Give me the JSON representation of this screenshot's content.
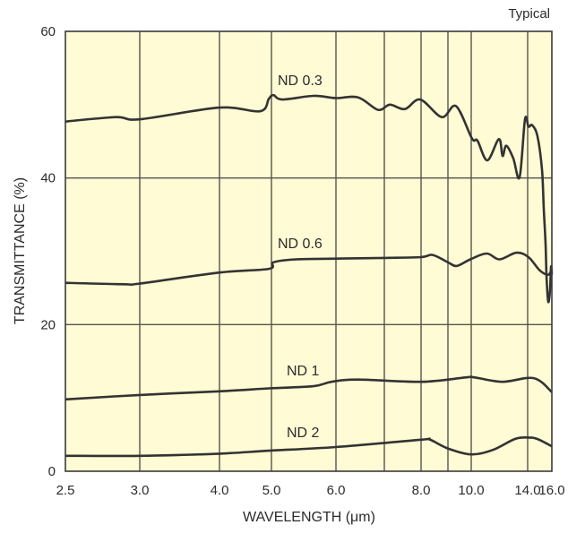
{
  "chart_data": {
    "type": "line",
    "title": "",
    "annotation": "Typical",
    "xlabel": "WAVELENGTH (μm)",
    "ylabel": "TRANSMITTANCE (%)",
    "xlim": [
      2.5,
      16.0
    ],
    "ylim": [
      0,
      60
    ],
    "x_scale": "custom (non-uniform tick spacing)",
    "x_ticks": [
      2.5,
      3.0,
      4.0,
      5.0,
      6.0,
      7.0,
      8.0,
      9.0,
      10.0,
      14.0,
      16.0
    ],
    "x_tick_labels": [
      "2.5",
      "3.0",
      "4.0",
      "5.0",
      "6.0",
      "",
      "8.0",
      "",
      "10.0",
      "14.0",
      "16.0"
    ],
    "y_ticks": [
      0,
      20,
      40,
      60
    ],
    "y_tick_labels": [
      "0",
      "20",
      "40",
      "60"
    ],
    "grid": true,
    "background_color": "#FFFBD5",
    "line_color": "#333333",
    "series": [
      {
        "name": "ND 0.3",
        "points": [
          [
            2.5,
            47.7
          ],
          [
            2.84,
            48.3
          ],
          [
            3.0,
            48.0
          ],
          [
            4.0,
            49.6
          ],
          [
            4.78,
            49.1
          ],
          [
            4.95,
            50.8
          ],
          [
            5.03,
            51.3
          ],
          [
            5.17,
            50.7
          ],
          [
            5.65,
            51.2
          ],
          [
            6.0,
            50.9
          ],
          [
            6.46,
            51.0
          ],
          [
            6.87,
            49.3
          ],
          [
            7.15,
            50.0
          ],
          [
            7.56,
            49.4
          ],
          [
            7.98,
            50.7
          ],
          [
            8.77,
            48.3
          ],
          [
            9.35,
            49.8
          ],
          [
            10.05,
            45.4
          ],
          [
            10.44,
            45.1
          ],
          [
            11.14,
            42.4
          ],
          [
            11.96,
            45.3
          ],
          [
            12.22,
            43.0
          ],
          [
            12.48,
            44.4
          ],
          [
            12.98,
            42.7
          ],
          [
            13.43,
            40.1
          ],
          [
            13.81,
            48.0
          ],
          [
            14.07,
            47.0
          ],
          [
            14.37,
            47.2
          ],
          [
            14.81,
            45.7
          ],
          [
            15.19,
            41.0
          ],
          [
            15.33,
            35.8
          ],
          [
            15.48,
            31.0
          ],
          [
            15.56,
            26.4
          ],
          [
            15.7,
            23.1
          ],
          [
            15.85,
            24.8
          ],
          [
            15.93,
            27.9
          ],
          [
            16.0,
            26.8
          ]
        ]
      },
      {
        "name": "ND 0.6",
        "points": [
          [
            2.5,
            25.7
          ],
          [
            2.9,
            25.5
          ],
          [
            3.0,
            25.6
          ],
          [
            4.0,
            27.1
          ],
          [
            4.95,
            27.6
          ],
          [
            5.03,
            28.5
          ],
          [
            5.38,
            28.9
          ],
          [
            6.0,
            29.0
          ],
          [
            7.0,
            29.1
          ],
          [
            8.0,
            29.2
          ],
          [
            8.43,
            29.5
          ],
          [
            9.0,
            28.5
          ],
          [
            9.38,
            28.0
          ],
          [
            9.96,
            28.9
          ],
          [
            11.1,
            29.7
          ],
          [
            12.0,
            28.9
          ],
          [
            13.2,
            29.8
          ],
          [
            14.07,
            29.2
          ],
          [
            15.0,
            27.4
          ],
          [
            15.7,
            26.8
          ],
          [
            16.0,
            27.6
          ]
        ]
      },
      {
        "name": "ND 1",
        "points": [
          [
            2.5,
            9.8
          ],
          [
            3.0,
            10.4
          ],
          [
            4.0,
            10.9
          ],
          [
            4.95,
            11.3
          ],
          [
            5.65,
            11.6
          ],
          [
            5.93,
            12.2
          ],
          [
            6.46,
            12.5
          ],
          [
            8.0,
            12.2
          ],
          [
            9.77,
            12.8
          ],
          [
            10.25,
            12.8
          ],
          [
            12.2,
            12.2
          ],
          [
            14.5,
            12.7
          ],
          [
            16.0,
            10.8
          ]
        ]
      },
      {
        "name": "ND 2",
        "points": [
          [
            2.5,
            2.1
          ],
          [
            3.0,
            2.1
          ],
          [
            4.0,
            2.4
          ],
          [
            4.95,
            2.8
          ],
          [
            6.0,
            3.3
          ],
          [
            8.0,
            4.3
          ],
          [
            8.33,
            4.3
          ],
          [
            9.0,
            3.1
          ],
          [
            10.0,
            2.3
          ],
          [
            11.52,
            2.9
          ],
          [
            13.1,
            4.4
          ],
          [
            14.07,
            4.6
          ],
          [
            14.8,
            4.4
          ],
          [
            16.0,
            3.4
          ]
        ]
      }
    ]
  }
}
